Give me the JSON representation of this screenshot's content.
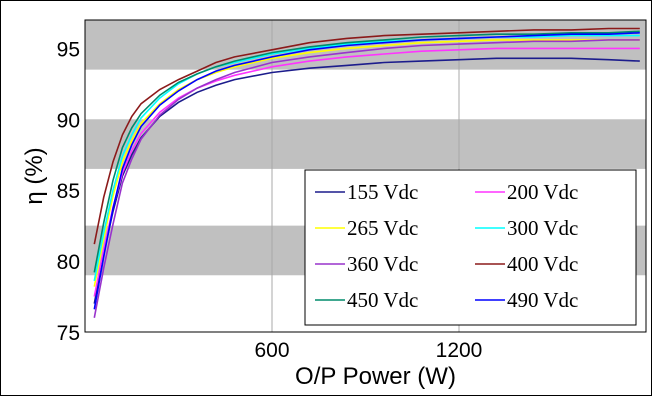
{
  "chart_data": {
    "type": "line",
    "title": "",
    "xlabel": "O/P Power (W)",
    "ylabel": "η (%)",
    "xlim": [
      0,
      1800
    ],
    "ylim": [
      75,
      97
    ],
    "xticks": [
      600,
      1200
    ],
    "yticks": [
      75,
      80,
      85,
      90,
      95
    ],
    "shaded_bands": [
      [
        93.5,
        97
      ],
      [
        86.5,
        90
      ],
      [
        79,
        82.5
      ]
    ],
    "legend_position": "bottom-right",
    "x": [
      30,
      60,
      90,
      120,
      150,
      180,
      240,
      300,
      360,
      420,
      480,
      600,
      720,
      840,
      960,
      1080,
      1200,
      1320,
      1440,
      1560,
      1680,
      1780
    ],
    "series": [
      {
        "name": "155 Vdc",
        "color": "#1c1c8c",
        "values": [
          77.0,
          80.5,
          83.5,
          86.0,
          87.5,
          88.7,
          90.2,
          91.2,
          91.9,
          92.4,
          92.8,
          93.3,
          93.6,
          93.8,
          94.0,
          94.1,
          94.2,
          94.3,
          94.3,
          94.3,
          94.2,
          94.1
        ]
      },
      {
        "name": "200 Vdc",
        "color": "#ff33ff",
        "values": [
          77.5,
          80.8,
          83.8,
          86.2,
          87.8,
          89.0,
          90.5,
          91.5,
          92.2,
          92.7,
          93.1,
          93.7,
          94.1,
          94.4,
          94.6,
          94.8,
          94.9,
          95.0,
          95.0,
          95.0,
          95.0,
          95.0
        ]
      },
      {
        "name": "265 Vdc",
        "color": "#ffff00",
        "values": [
          78.2,
          81.6,
          84.6,
          87.0,
          88.5,
          89.7,
          91.1,
          92.1,
          92.8,
          93.3,
          93.7,
          94.3,
          94.7,
          95.0,
          95.2,
          95.4,
          95.5,
          95.6,
          95.6,
          95.6,
          95.6,
          95.6
        ]
      },
      {
        "name": "300 Vdc",
        "color": "#00ffff",
        "values": [
          78.6,
          82.0,
          85.0,
          87.4,
          88.9,
          90.1,
          91.5,
          92.5,
          93.2,
          93.7,
          94.0,
          94.6,
          95.0,
          95.3,
          95.5,
          95.6,
          95.7,
          95.8,
          95.8,
          95.9,
          95.9,
          95.9
        ]
      },
      {
        "name": "360 Vdc",
        "color": "#9933cc",
        "values": [
          76.0,
          79.5,
          82.6,
          85.5,
          87.2,
          88.6,
          90.3,
          91.4,
          92.2,
          92.8,
          93.3,
          94.0,
          94.4,
          94.7,
          95.0,
          95.2,
          95.3,
          95.4,
          95.5,
          95.5,
          95.6,
          95.6
        ]
      },
      {
        "name": "400 Vdc",
        "color": "#8b1a1a",
        "values": [
          81.2,
          84.5,
          87.0,
          88.9,
          90.2,
          91.1,
          92.1,
          92.8,
          93.4,
          94.0,
          94.4,
          94.9,
          95.4,
          95.7,
          95.9,
          96.0,
          96.1,
          96.2,
          96.3,
          96.3,
          96.4,
          96.4
        ]
      },
      {
        "name": "450 Vdc",
        "color": "#008b6b",
        "values": [
          79.2,
          82.7,
          85.7,
          88.0,
          89.4,
          90.4,
          91.7,
          92.6,
          93.2,
          93.7,
          94.1,
          94.7,
          95.1,
          95.4,
          95.6,
          95.8,
          95.9,
          96.0,
          96.0,
          96.1,
          96.1,
          96.2
        ]
      },
      {
        "name": "490 Vdc",
        "color": "#0000ff",
        "values": [
          76.6,
          80.3,
          83.7,
          86.5,
          88.2,
          89.5,
          91.0,
          92.0,
          92.8,
          93.4,
          93.8,
          94.4,
          94.9,
          95.2,
          95.4,
          95.6,
          95.7,
          95.8,
          95.9,
          96.0,
          96.0,
          96.1
        ]
      }
    ]
  }
}
